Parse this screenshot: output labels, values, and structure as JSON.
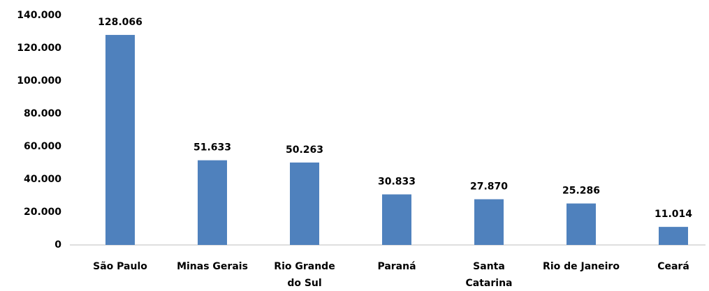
{
  "chart_data": {
    "type": "bar",
    "categories": [
      "São Paulo",
      "Minas Gerais",
      "Rio Grande\ndo Sul",
      "Paraná",
      "Santa\nCatarina",
      "Rio de Janeiro",
      "Ceará"
    ],
    "values": [
      128066,
      51633,
      50263,
      30833,
      27870,
      25286,
      11014
    ],
    "value_labels": [
      "128.066",
      "51.633",
      "50.263",
      "30.833",
      "27.870",
      "25.286",
      "11.014"
    ],
    "color": "#4f81bd",
    "ylim": [
      0,
      140000
    ],
    "yticks": [
      0,
      {
        "value": 20000,
        "label": "20.000"
      },
      {
        "value": 40000,
        "label": "40.000"
      },
      {
        "value": 60000,
        "label": "60.000"
      },
      {
        "value": 80000,
        "label": "80.000"
      },
      {
        "value": 100000,
        "label": "100.000"
      },
      {
        "value": 120000,
        "label": "120.000"
      },
      {
        "value": 140000,
        "label": "140.000"
      }
    ],
    "grid": false
  }
}
